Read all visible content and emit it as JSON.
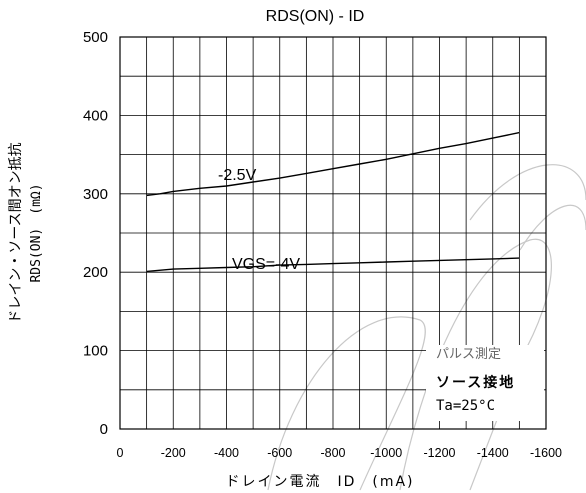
{
  "chart_data": {
    "type": "line",
    "title": "RDS(ON) - ID",
    "xlabel": "ドレイン電流　ID　(mA)",
    "ylabel_line1": "ドレイン・ソース間オン抵抗",
    "ylabel_line2": "RDS(ON)　(mΩ)",
    "xlim": [
      0,
      -1600
    ],
    "ylim": [
      0,
      500
    ],
    "x_ticks": [
      0,
      -200,
      -400,
      -600,
      -800,
      -1000,
      -1200,
      -1400,
      -1600
    ],
    "y_ticks": [
      0,
      100,
      200,
      300,
      400,
      500
    ],
    "grid": true,
    "series": [
      {
        "name": "-2.5V",
        "x": [
          -100,
          -150,
          -200,
          -300,
          -400,
          -500,
          -600,
          -700,
          -800,
          -900,
          -1000,
          -1100,
          -1200,
          -1300,
          -1400,
          -1500
        ],
        "y": [
          298,
          300,
          303,
          307,
          310,
          315,
          320,
          326,
          332,
          338,
          344,
          351,
          358,
          364,
          371,
          378
        ]
      },
      {
        "name": "VGS=-4V",
        "x": [
          -100,
          -200,
          -300,
          -400,
          -500,
          -600,
          -700,
          -800,
          -900,
          -1000,
          -1100,
          -1200,
          -1300,
          -1400,
          -1500
        ],
        "y": [
          201,
          204,
          205,
          206,
          207,
          209,
          210,
          211,
          212,
          213,
          214,
          215,
          216,
          217,
          218
        ]
      }
    ],
    "annotations": {
      "line1": "パルス測定",
      "line2": "ソース接地",
      "line3": "Ta=25°C"
    },
    "colors": {
      "line": "#000000",
      "grid": "#000000",
      "watermark": "#c8c8c8"
    }
  }
}
